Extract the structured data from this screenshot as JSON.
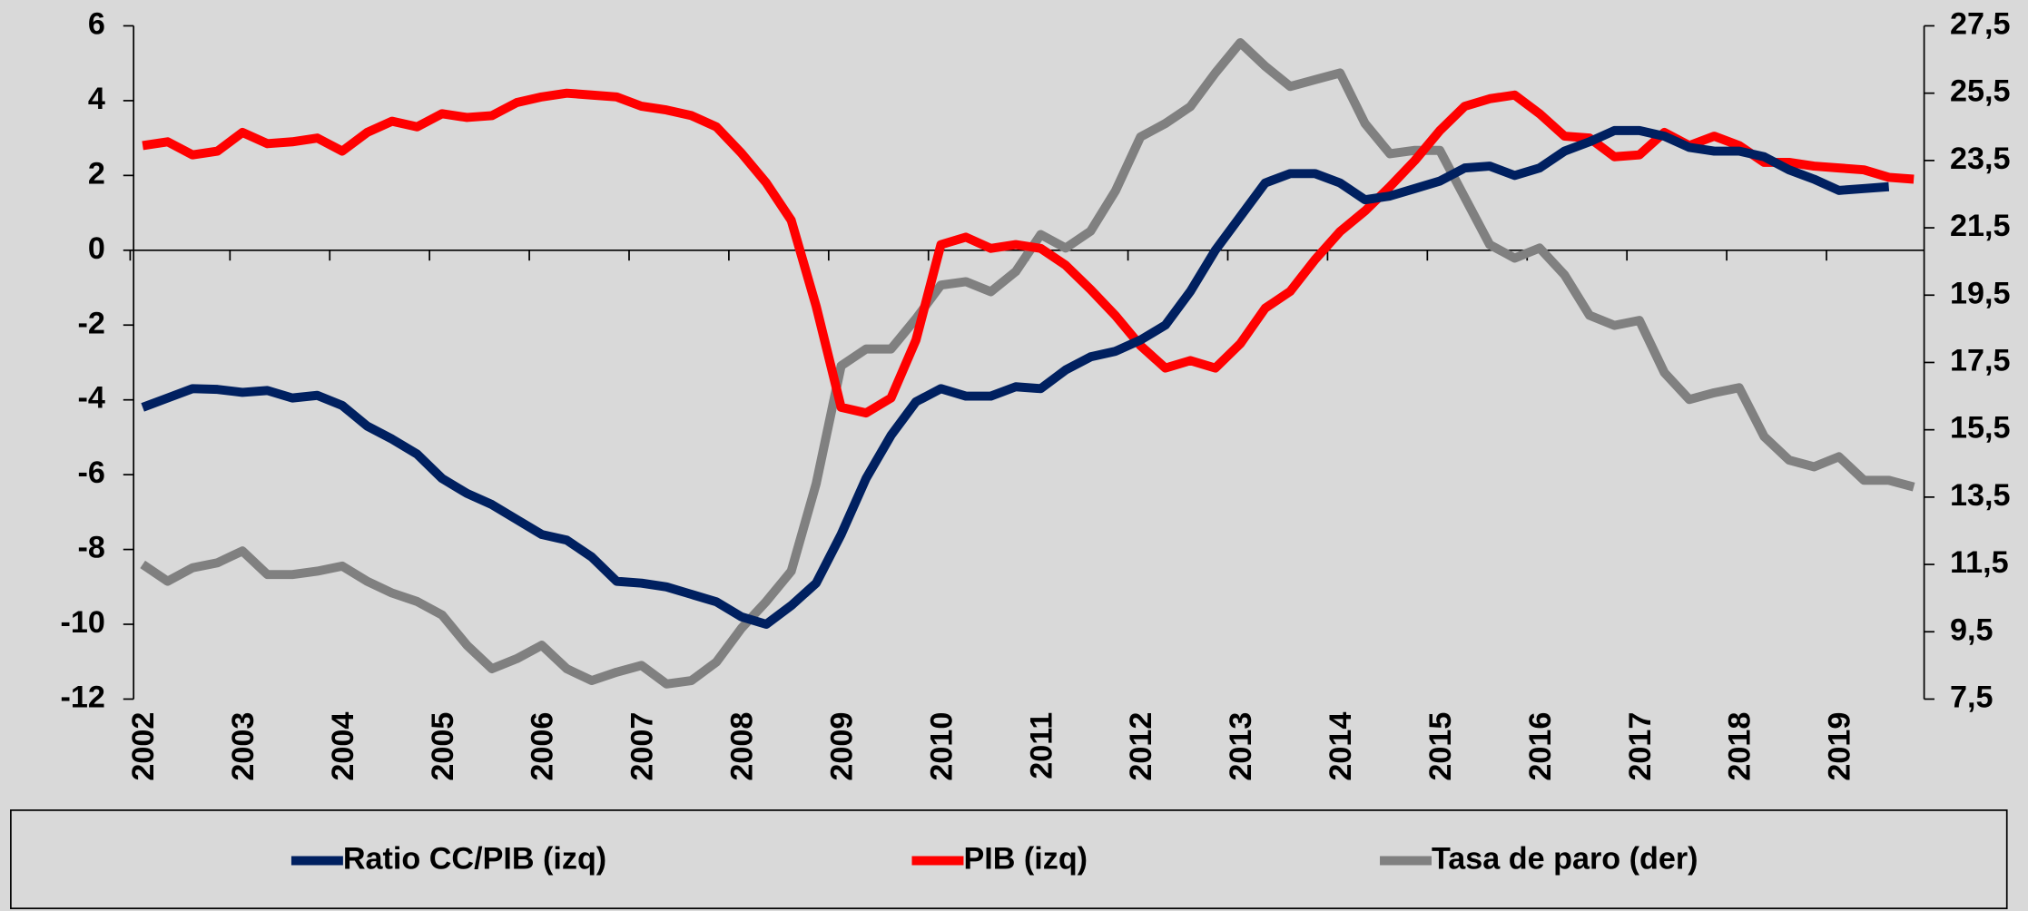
{
  "chart_data": {
    "type": "line",
    "categories": [
      "2002",
      null,
      null,
      null,
      "2003",
      null,
      null,
      null,
      "2004",
      null,
      null,
      null,
      "2005",
      null,
      null,
      null,
      "2006",
      null,
      null,
      null,
      "2007",
      null,
      null,
      null,
      "2008",
      null,
      null,
      null,
      "2009",
      null,
      null,
      null,
      "2010",
      null,
      null,
      null,
      "2011",
      null,
      null,
      null,
      "2012",
      null,
      null,
      null,
      "2013",
      null,
      null,
      null,
      "2014",
      null,
      null,
      null,
      "2015",
      null,
      null,
      null,
      "2016",
      null,
      null,
      null,
      "2017",
      null,
      null,
      null,
      "2018",
      null,
      null,
      null,
      "2019",
      null,
      null,
      null
    ],
    "series": [
      {
        "name": "Ratio CC/PIB (izq)",
        "color": "#002060",
        "axis": "y",
        "values": [
          -4.2,
          -3.95,
          -3.7,
          -3.72,
          -3.8,
          -3.75,
          -3.95,
          -3.88,
          -4.15,
          -4.7,
          -5.05,
          -5.45,
          -6.1,
          -6.5,
          -6.8,
          -7.2,
          -7.6,
          -7.75,
          -8.2,
          -8.85,
          -8.9,
          -9.0,
          -9.2,
          -9.4,
          -9.8,
          -10.0,
          -9.5,
          -8.9,
          -7.6,
          -6.1,
          -4.95,
          -4.05,
          -3.7,
          -3.9,
          -3.9,
          -3.65,
          -3.7,
          -3.2,
          -2.85,
          -2.7,
          -2.4,
          -2.0,
          -1.1,
          0.0,
          0.9,
          1.8,
          2.05,
          2.05,
          1.8,
          1.35,
          1.45,
          1.65,
          1.85,
          2.2,
          2.25,
          2.0,
          2.2,
          2.65,
          2.9,
          3.2,
          3.2,
          3.05,
          2.75,
          2.65,
          2.65,
          2.5,
          2.15,
          1.9,
          1.6,
          1.65,
          1.7,
          null
        ]
      },
      {
        "name": "PIB (izq)",
        "color": "#ff0000",
        "axis": "y",
        "values": [
          2.8,
          2.9,
          2.55,
          2.65,
          3.15,
          2.85,
          2.9,
          3.0,
          2.65,
          3.15,
          3.45,
          3.3,
          3.65,
          3.55,
          3.6,
          3.95,
          4.1,
          4.2,
          4.15,
          4.1,
          3.85,
          3.75,
          3.6,
          3.3,
          2.6,
          1.8,
          0.8,
          -1.5,
          -4.2,
          -4.35,
          -3.95,
          -2.4,
          0.15,
          0.35,
          0.05,
          0.15,
          0.05,
          -0.4,
          -1.05,
          -1.75,
          -2.55,
          -3.15,
          -2.95,
          -3.15,
          -2.5,
          -1.55,
          -1.1,
          -0.25,
          0.5,
          1.05,
          1.7,
          2.4,
          3.2,
          3.85,
          4.05,
          4.15,
          3.65,
          3.05,
          3.0,
          2.5,
          2.55,
          3.15,
          2.8,
          3.05,
          2.8,
          2.35,
          2.35,
          2.25,
          2.2,
          2.15,
          1.95,
          1.9
        ]
      },
      {
        "name": "Tasa de paro (der)",
        "color": "#808080",
        "axis": "y2",
        "values": [
          11.5,
          11.0,
          11.4,
          11.55,
          11.9,
          11.2,
          11.2,
          11.3,
          11.45,
          11.0,
          10.65,
          10.4,
          10.0,
          9.1,
          8.4,
          8.7,
          9.1,
          8.4,
          8.05,
          8.3,
          8.5,
          7.95,
          8.05,
          8.6,
          9.6,
          10.4,
          11.3,
          13.9,
          17.4,
          17.9,
          17.9,
          18.8,
          19.8,
          19.9,
          19.6,
          20.2,
          21.3,
          20.9,
          21.4,
          22.6,
          24.2,
          24.6,
          25.1,
          26.1,
          27.0,
          26.3,
          25.7,
          25.9,
          26.1,
          24.6,
          23.7,
          23.8,
          23.8,
          22.4,
          21.0,
          20.6,
          20.9,
          20.1,
          18.9,
          18.6,
          18.75,
          17.2,
          16.4,
          16.6,
          16.75,
          15.3,
          14.6,
          14.4,
          14.7,
          14.0,
          14.0,
          13.8
        ]
      }
    ],
    "ylim": [
      -12,
      6
    ],
    "yticks": [
      -12,
      -10,
      -8,
      -6,
      -4,
      -2,
      0,
      2,
      4,
      6
    ],
    "y2lim": [
      7.5,
      27.5
    ],
    "y2ticks": [
      {
        "value": 7.5,
        "label": "7,5"
      },
      {
        "value": 9.5,
        "label": "9,5"
      },
      {
        "value": 11.5,
        "label": "11,5"
      },
      {
        "value": 13.5,
        "label": "13,5"
      },
      {
        "value": 15.5,
        "label": "15,5"
      },
      {
        "value": 17.5,
        "label": "17,5"
      },
      {
        "value": 19.5,
        "label": "19,5"
      },
      {
        "value": 21.5,
        "label": "21,5"
      },
      {
        "value": 23.5,
        "label": "23,5"
      },
      {
        "value": 25.5,
        "label": "25,5"
      },
      {
        "value": 27.5,
        "label": "27,5"
      }
    ],
    "grid": false,
    "legend": "bottom"
  }
}
